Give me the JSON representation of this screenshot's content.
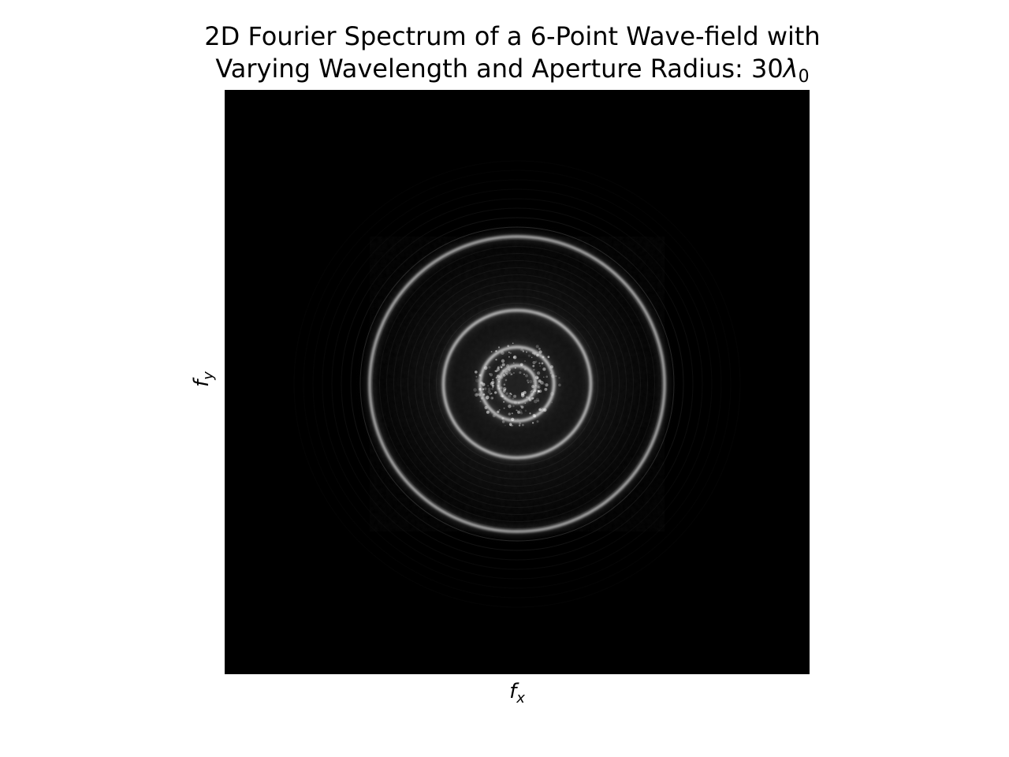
{
  "chart_data": {
    "type": "heatmap",
    "title_line1": "2D Fourier Spectrum of a 6-Point Wave-field with",
    "title_line2_text": "Varying Wavelength and Aperture Radius: 30",
    "title_line2_symbol": "λ",
    "title_line2_subscript": "0",
    "xlabel_base": "f",
    "xlabel_sub": "x",
    "ylabel_base": "f",
    "ylabel_sub": "y",
    "colormap": "gray",
    "background": "#000000",
    "ring_color": "#ffffff",
    "axes_ticks": false,
    "grid": false,
    "ring_radii_relative_to_outer": [
      1.0,
      0.5,
      0.25,
      0.125
    ],
    "ring_brightness": [
      0.8,
      0.85,
      0.9,
      0.9
    ]
  }
}
